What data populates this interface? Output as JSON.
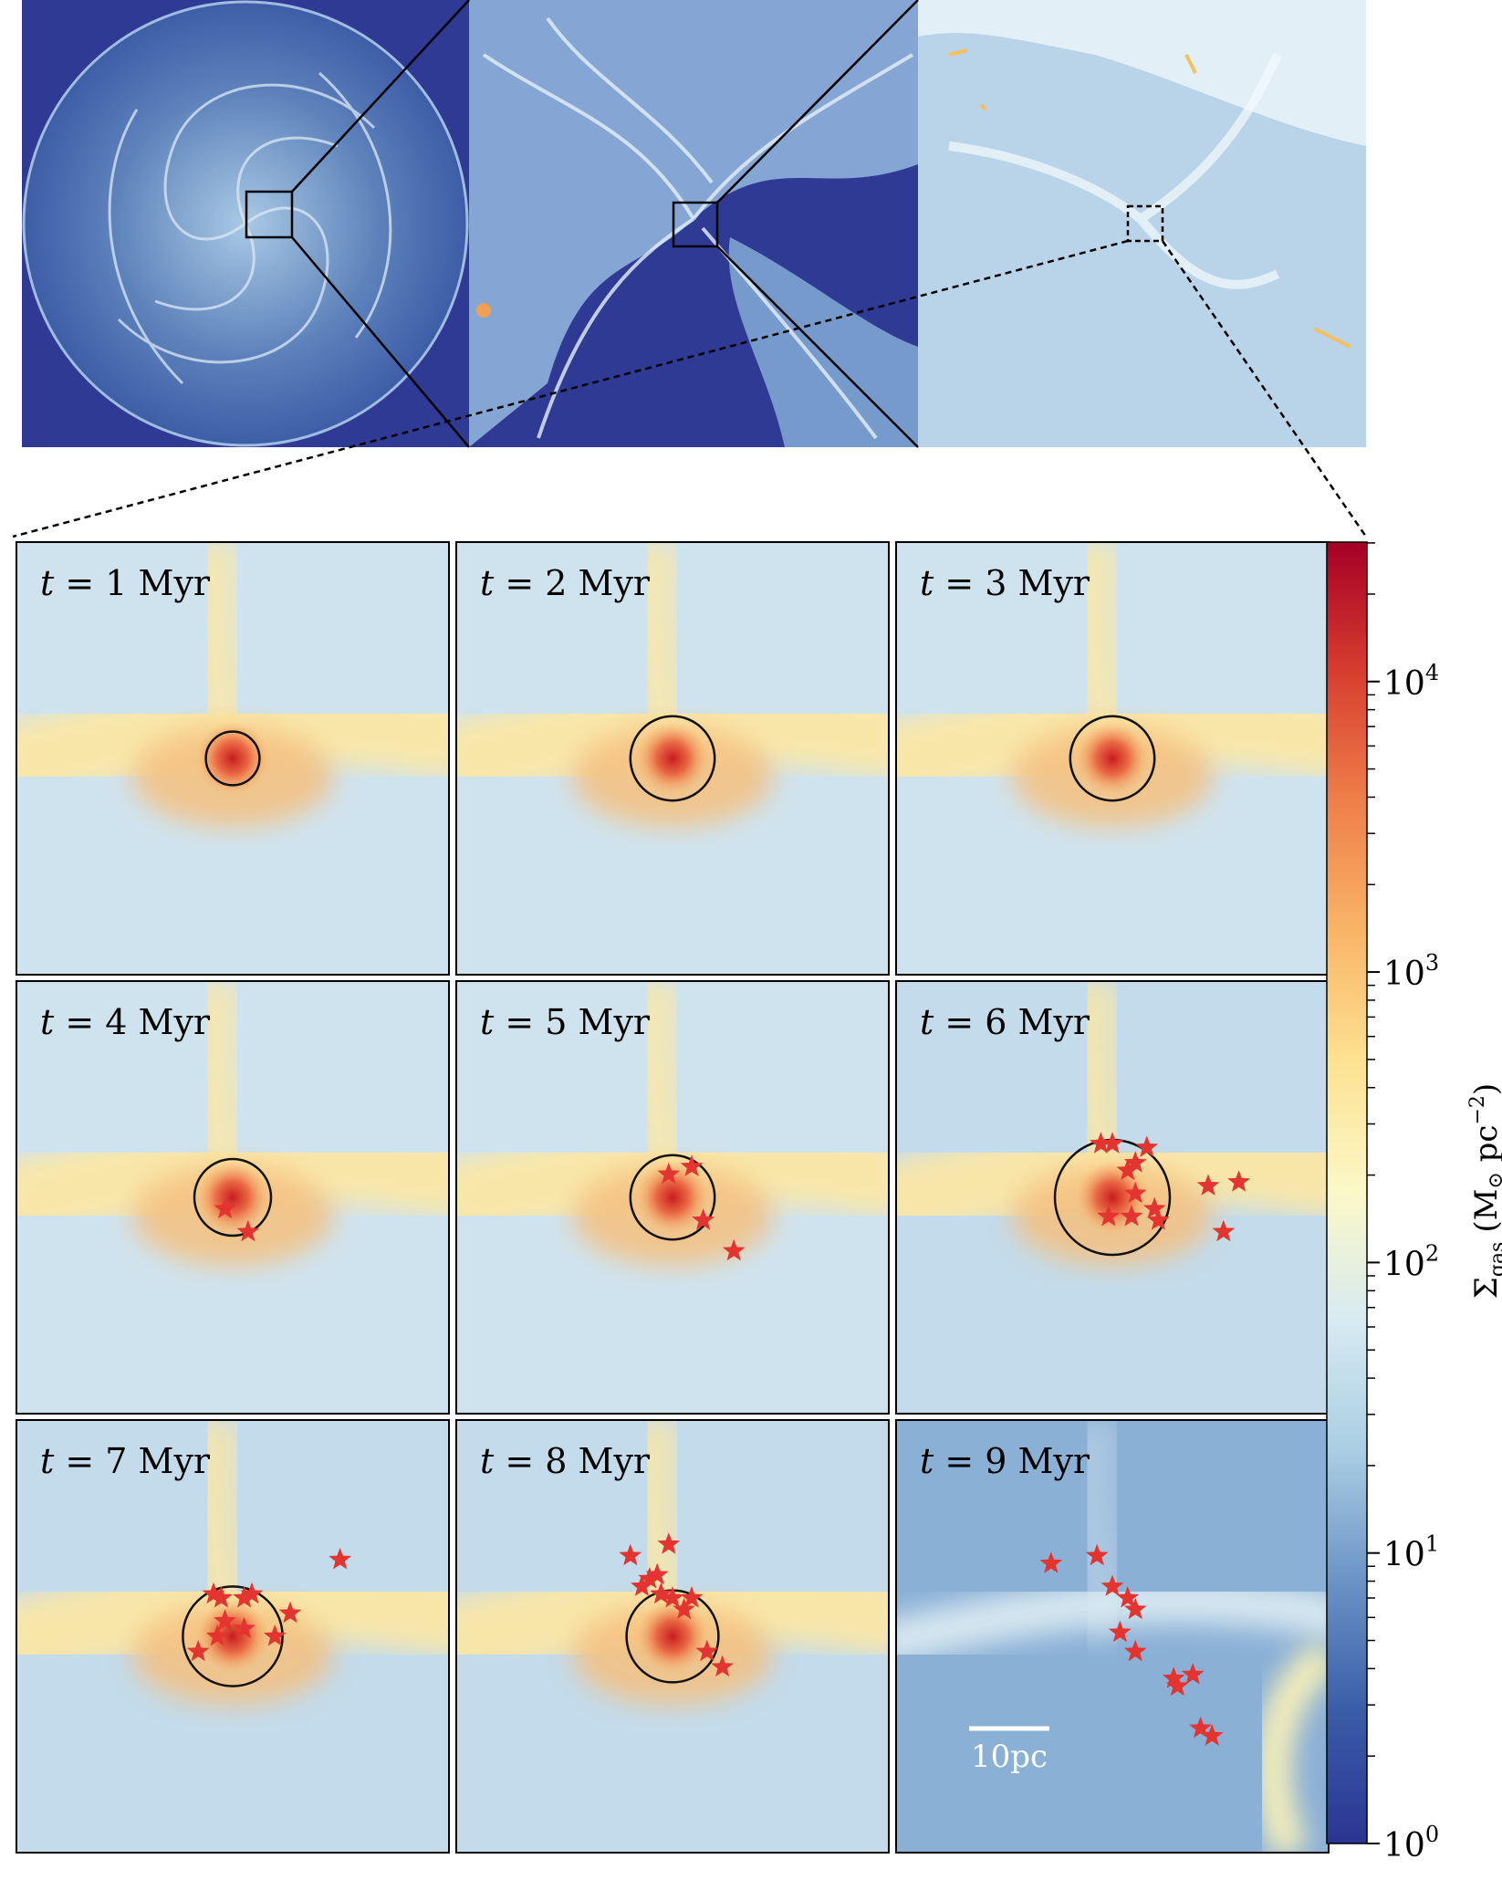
{
  "panels": [
    {
      "t_prefix": "t",
      "eq": " = ",
      "value": "1",
      "unit": " Myr",
      "state": "dense",
      "circle_r": 0.7,
      "stars": []
    },
    {
      "t_prefix": "t",
      "eq": " = ",
      "value": "2",
      "unit": " Myr",
      "state": "dense",
      "circle_r": 1.1,
      "stars": []
    },
    {
      "t_prefix": "t",
      "eq": " = ",
      "value": "3",
      "unit": " Myr",
      "state": "dense",
      "circle_r": 1.1,
      "stars": []
    },
    {
      "t_prefix": "t",
      "eq": " = ",
      "value": "4",
      "unit": " Myr",
      "state": "dense",
      "circle_r": 1.0,
      "stars": [
        [
          -0.2,
          -0.3
        ],
        [
          0.4,
          -0.9
        ]
      ]
    },
    {
      "t_prefix": "t",
      "eq": " = ",
      "value": "5",
      "unit": " Myr",
      "state": "dense",
      "circle_r": 1.1,
      "stars": [
        [
          -0.1,
          0.6
        ],
        [
          0.5,
          0.8
        ],
        [
          0.8,
          -0.6
        ],
        [
          1.6,
          -1.4
        ]
      ]
    },
    {
      "t_prefix": "t",
      "eq": " = ",
      "value": "6",
      "unit": " Myr",
      "state": "mid",
      "circle_r": 1.5,
      "stars": [
        [
          -0.3,
          1.4
        ],
        [
          0.0,
          1.4
        ],
        [
          0.4,
          0.7
        ],
        [
          0.6,
          0.9
        ],
        [
          0.9,
          1.3
        ],
        [
          0.6,
          0.1
        ],
        [
          -0.1,
          -0.5
        ],
        [
          0.5,
          -0.5
        ],
        [
          1.1,
          -0.3
        ],
        [
          1.2,
          -0.6
        ],
        [
          2.5,
          0.3
        ],
        [
          3.3,
          0.4
        ],
        [
          2.9,
          -0.9
        ]
      ]
    },
    {
      "t_prefix": "t",
      "eq": " = ",
      "value": "7",
      "unit": " Myr",
      "state": "mid",
      "circle_r": 1.3,
      "stars": [
        [
          -0.5,
          1.1
        ],
        [
          -0.3,
          1.0
        ],
        [
          0.3,
          1.0
        ],
        [
          0.5,
          1.1
        ],
        [
          -0.2,
          0.4
        ],
        [
          -0.4,
          0.0
        ],
        [
          0.3,
          0.2
        ],
        [
          1.1,
          0.0
        ],
        [
          -0.9,
          -0.4
        ],
        [
          1.5,
          0.6
        ],
        [
          2.8,
          2.0
        ]
      ]
    },
    {
      "t_prefix": "t",
      "eq": " = ",
      "value": "8",
      "unit": " Myr",
      "state": "mid",
      "circle_r": 1.2,
      "stars": [
        [
          -1.1,
          2.1
        ],
        [
          -0.6,
          1.5
        ],
        [
          -0.4,
          1.6
        ],
        [
          -0.8,
          1.3
        ],
        [
          -0.3,
          1.1
        ],
        [
          0.0,
          1.0
        ],
        [
          0.5,
          1.0
        ],
        [
          0.3,
          0.7
        ],
        [
          -0.1,
          2.4
        ],
        [
          0.9,
          -0.4
        ],
        [
          1.3,
          -0.8
        ]
      ]
    },
    {
      "t_prefix": "t",
      "eq": " = ",
      "value": "9",
      "unit": " Myr",
      "state": "diffuse",
      "circle_r": 0,
      "stars": [
        [
          -1.6,
          1.9
        ],
        [
          -0.4,
          2.1
        ],
        [
          0.0,
          1.3
        ],
        [
          0.4,
          1.0
        ],
        [
          0.6,
          0.7
        ],
        [
          0.2,
          0.1
        ],
        [
          0.6,
          -0.4
        ],
        [
          1.6,
          -1.1
        ],
        [
          2.1,
          -1.0
        ],
        [
          1.7,
          -1.3
        ],
        [
          2.3,
          -2.4
        ],
        [
          2.6,
          -2.6
        ]
      ]
    }
  ],
  "colorbar": {
    "ticks": [
      {
        "exp": "0",
        "pos": 0
      },
      {
        "exp": "1",
        "pos": 1
      },
      {
        "exp": "2",
        "pos": 2
      },
      {
        "exp": "3",
        "pos": 3
      },
      {
        "exp": "4",
        "pos": 4
      }
    ],
    "base": "10",
    "max_log": 4.48,
    "label_sigma": "Σ",
    "label_sub": "gas",
    "label_units": "(M",
    "label_sun": "⊙",
    "label_pc": " pc",
    "label_exp": "−2",
    "label_close": ")"
  },
  "scalebar": {
    "label": "10pc"
  },
  "colors": {
    "star": "#e3342f",
    "circle": "#111111",
    "zoom_line": "#000000"
  }
}
